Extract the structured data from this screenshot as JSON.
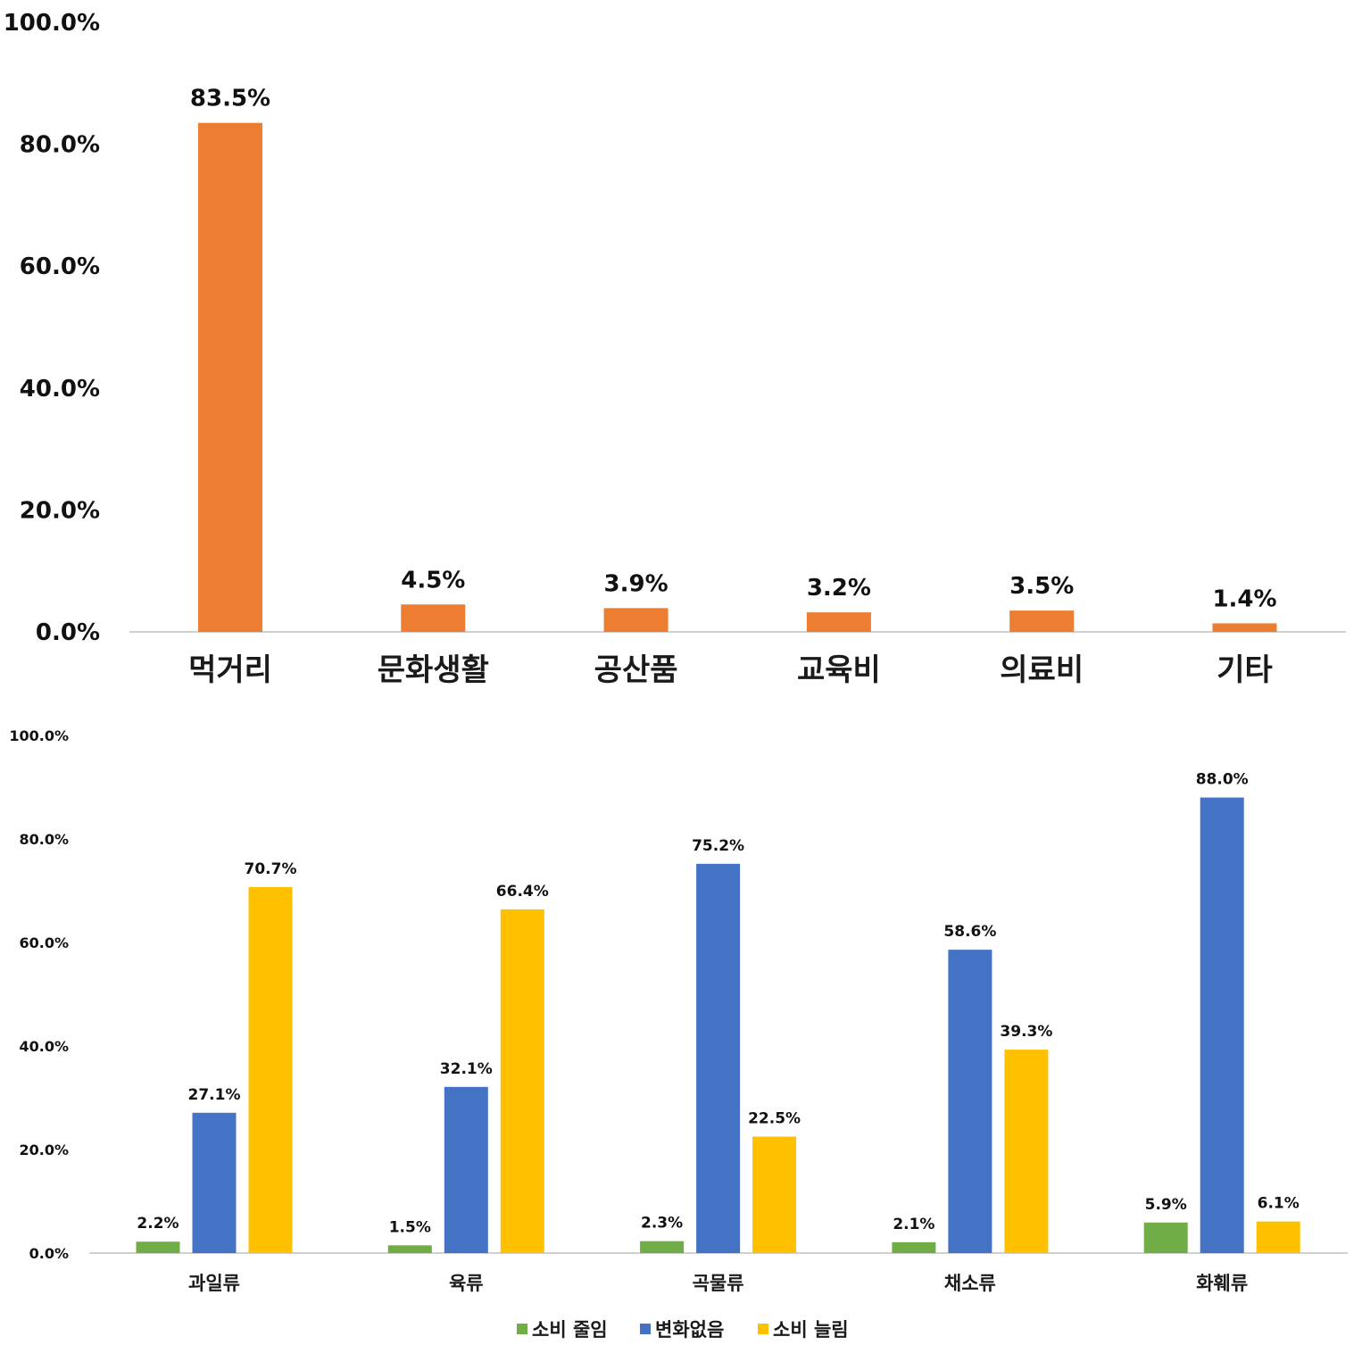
{
  "chart_data": [
    {
      "type": "bar",
      "categories": [
        "먹거리",
        "문화생활",
        "공산품",
        "교육비",
        "의료비",
        "기타"
      ],
      "values": [
        83.5,
        4.5,
        3.9,
        3.2,
        3.5,
        1.4
      ],
      "value_labels": [
        "83.5%",
        "4.5%",
        "3.9%",
        "3.2%",
        "3.5%",
        "1.4%"
      ],
      "ylim": [
        0,
        100
      ],
      "yticks": [
        "0.0%",
        "20.0%",
        "40.0%",
        "60.0%",
        "80.0%",
        "100.0%"
      ],
      "color": "#ED7D31",
      "grid": false,
      "legend": false
    },
    {
      "type": "bar",
      "categories": [
        "과일류",
        "육류",
        "곡물류",
        "채소류",
        "화훼류"
      ],
      "series": [
        {
          "name": "소비 줄임",
          "color": "#70AD47",
          "values": [
            2.2,
            1.5,
            2.3,
            2.1,
            5.9
          ],
          "value_labels": [
            "2.2%",
            "1.5%",
            "2.3%",
            "2.1%",
            "5.9%"
          ]
        },
        {
          "name": "변화없음",
          "color": "#4472C4",
          "values": [
            27.1,
            32.1,
            75.2,
            58.6,
            88.0
          ],
          "value_labels": [
            "27.1%",
            "32.1%",
            "75.2%",
            "58.6%",
            "88.0%"
          ]
        },
        {
          "name": "소비 늘림",
          "color": "#FFC000",
          "values": [
            70.7,
            66.4,
            22.5,
            39.3,
            6.1
          ],
          "value_labels": [
            "70.7%",
            "66.4%",
            "22.5%",
            "39.3%",
            "6.1%"
          ]
        }
      ],
      "ylim": [
        0,
        100
      ],
      "yticks": [
        "0.0%",
        "20.0%",
        "40.0%",
        "60.0%",
        "80.0%",
        "100.0%"
      ],
      "grid": false,
      "legend": "bottom-center"
    }
  ]
}
